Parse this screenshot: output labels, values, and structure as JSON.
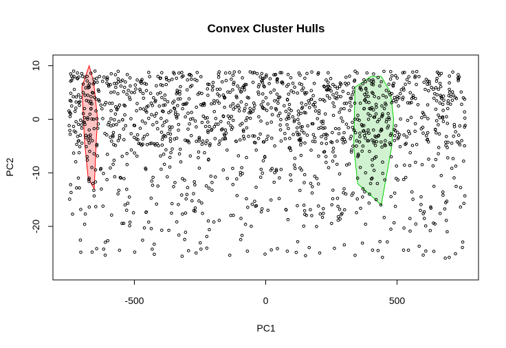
{
  "chart_data": {
    "type": "scatter",
    "title": "Convex Cluster Hulls",
    "xlabel": "PC1",
    "ylabel": "PC2",
    "xlim": [
      -810,
      810
    ],
    "ylim": [
      -30,
      12
    ],
    "xticks": [
      -500,
      0,
      500
    ],
    "yticks": [
      -20,
      -10,
      0,
      10
    ],
    "background_points": {
      "count": 1400,
      "x_range": [
        -750,
        760
      ],
      "y_range": [
        -28,
        11
      ],
      "color": "#000000",
      "marker": "open-circle"
    },
    "hulls": [
      {
        "color": "#ff0000",
        "fill": "#ffbbbb",
        "vertices": [
          [
            -672,
            10
          ],
          [
            -655,
            7
          ],
          [
            -640,
            0
          ],
          [
            -645,
            -4
          ],
          [
            -653,
            -13
          ],
          [
            -676,
            -11
          ],
          [
            -690,
            -4
          ],
          [
            -700,
            6
          ]
        ],
        "points": [
          [
            -680,
            8
          ],
          [
            -672,
            6
          ],
          [
            -660,
            5
          ],
          [
            -690,
            2
          ],
          [
            -665,
            2
          ],
          [
            -678,
            0
          ],
          [
            -655,
            0
          ],
          [
            -672,
            -2
          ],
          [
            -685,
            -3
          ],
          [
            -660,
            -4
          ],
          [
            -670,
            -6
          ],
          [
            -680,
            -7
          ],
          [
            -662,
            -9
          ],
          [
            -672,
            -11
          ],
          [
            -658,
            -12
          ],
          [
            -650,
            9
          ],
          [
            -695,
            5
          ],
          [
            -668,
            3
          ]
        ]
      },
      {
        "color": "#00cc00",
        "fill": "#c8f0c8",
        "vertices": [
          [
            340,
            6
          ],
          [
            372,
            7
          ],
          [
            400,
            8
          ],
          [
            440,
            8
          ],
          [
            475,
            5
          ],
          [
            487,
            0
          ],
          [
            480,
            -5
          ],
          [
            440,
            -16
          ],
          [
            350,
            -12
          ],
          [
            335,
            -5
          ]
        ],
        "points": [
          [
            360,
            6
          ],
          [
            380,
            7
          ],
          [
            410,
            7
          ],
          [
            440,
            7
          ],
          [
            470,
            5
          ],
          [
            385,
            5
          ],
          [
            405,
            5
          ],
          [
            430,
            4
          ],
          [
            455,
            3
          ],
          [
            360,
            3
          ],
          [
            375,
            2
          ],
          [
            395,
            2
          ],
          [
            420,
            1
          ],
          [
            445,
            1
          ],
          [
            470,
            0
          ],
          [
            350,
            0
          ],
          [
            365,
            -1
          ],
          [
            390,
            -2
          ],
          [
            410,
            -2
          ],
          [
            430,
            -3
          ],
          [
            455,
            -4
          ],
          [
            475,
            -3
          ],
          [
            345,
            -5
          ],
          [
            370,
            -5
          ],
          [
            395,
            -6
          ],
          [
            420,
            -7
          ],
          [
            445,
            -8
          ],
          [
            360,
            -9
          ],
          [
            380,
            -10
          ],
          [
            405,
            -11
          ],
          [
            425,
            -12
          ],
          [
            370,
            -13
          ],
          [
            395,
            -14
          ],
          [
            420,
            -15
          ],
          [
            438,
            -16
          ],
          [
            350,
            -11
          ]
        ]
      }
    ]
  }
}
